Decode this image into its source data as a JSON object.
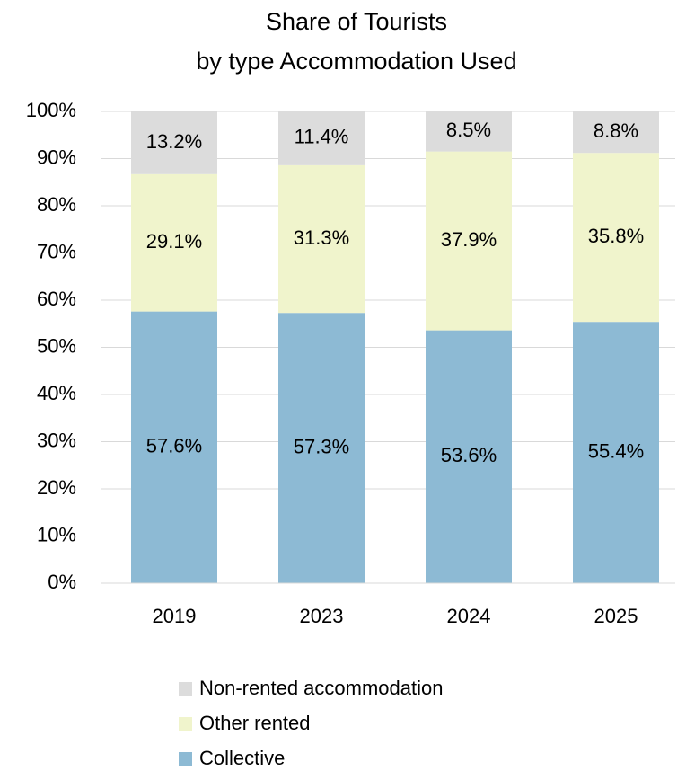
{
  "chart_data": {
    "type": "stacked_bar",
    "title": [
      "Share of Tourists",
      "by type Accommodation Used"
    ],
    "categories": [
      "2019",
      "2023",
      "2024",
      "2025"
    ],
    "series": [
      {
        "name": "Collective",
        "color": "#8dbad4",
        "values": [
          57.6,
          57.3,
          53.6,
          55.4
        ],
        "value_labels": [
          "57.6%",
          "57.3%",
          "53.6%",
          "55.4%"
        ]
      },
      {
        "name": "Other rented",
        "color": "#f0f4cc",
        "values": [
          29.1,
          31.3,
          37.9,
          35.8
        ],
        "value_labels": [
          "29.1%",
          "31.3%",
          "37.9%",
          "35.8%"
        ]
      },
      {
        "name": "Non-rented accommodation",
        "color": "#dcdcdc",
        "values": [
          13.2,
          11.4,
          8.5,
          8.8
        ],
        "value_labels": [
          "13.2%",
          "11.4%",
          "8.5%",
          "8.8%"
        ]
      }
    ],
    "ylim": [
      0,
      100
    ],
    "yticks": [
      {
        "value": 0,
        "label": "0%"
      },
      {
        "value": 10,
        "label": "10%"
      },
      {
        "value": 20,
        "label": "20%"
      },
      {
        "value": 30,
        "label": "30%"
      },
      {
        "value": 40,
        "label": "40%"
      },
      {
        "value": 50,
        "label": "50%"
      },
      {
        "value": 60,
        "label": "60%"
      },
      {
        "value": 70,
        "label": "70%"
      },
      {
        "value": 80,
        "label": "80%"
      },
      {
        "value": 90,
        "label": "90%"
      },
      {
        "value": 100,
        "label": "100%"
      }
    ],
    "grid": true,
    "legend": "bottom"
  }
}
